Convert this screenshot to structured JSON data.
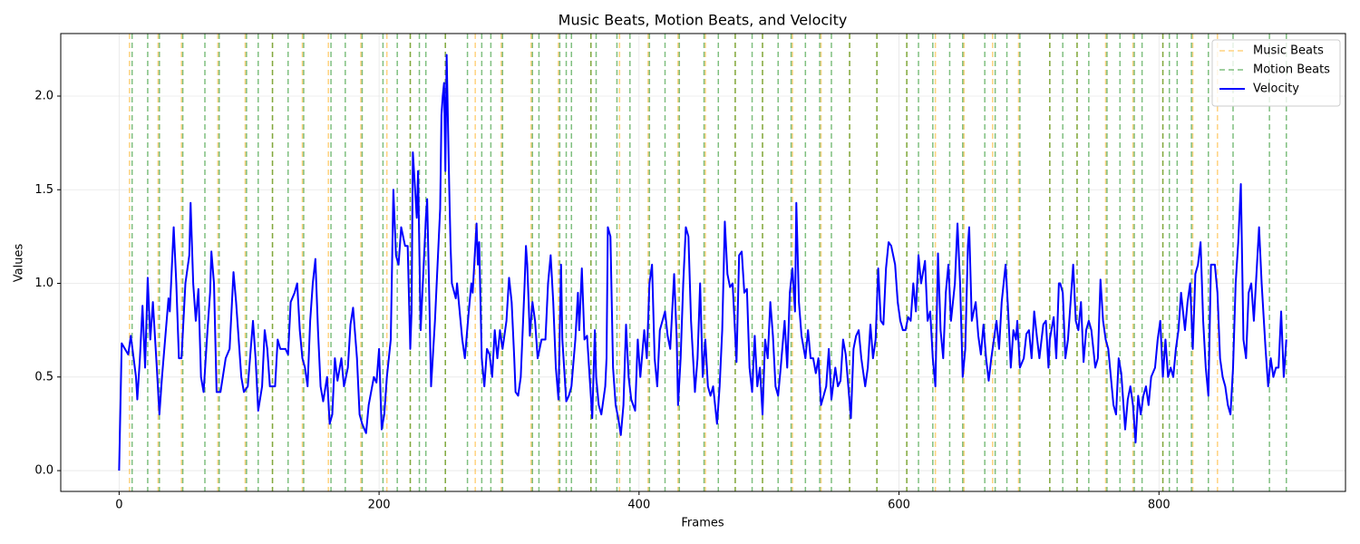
{
  "chart_data": {
    "type": "line",
    "title": "Music Beats, Motion Beats, and Velocity",
    "x_label": "Frames",
    "y_label": "Values",
    "xlim": [
      -44.9,
      943.5
    ],
    "ylim": [
      -0.111,
      2.334
    ],
    "xticks": [
      0,
      200,
      400,
      600,
      800
    ],
    "yticks": [
      {
        "value": 0,
        "label": "0.0"
      },
      0.5,
      {
        "value": 1,
        "label": "1.0"
      },
      1.5,
      {
        "value": 2,
        "label": "2.0"
      }
    ],
    "grid": true,
    "legend": "upper right",
    "series": [
      {
        "name": "Music Beats",
        "color": "orange",
        "style": "dashed",
        "x": [
          8,
          30,
          48,
          76,
          97,
          118,
          141,
          161,
          186,
          206,
          224,
          251,
          274,
          294,
          317,
          338,
          363,
          385,
          407,
          430,
          451,
          474,
          495,
          518,
          540,
          562,
          583,
          606,
          628,
          650,
          672,
          692,
          716,
          737,
          759,
          780,
          803,
          826,
          845
        ]
      },
      {
        "name": "Motion Beats",
        "color": "green",
        "style": "dashed",
        "x": [
          10,
          22,
          31,
          49,
          66,
          77,
          98,
          107,
          118,
          130,
          142,
          163,
          174,
          187,
          203,
          214,
          224,
          231,
          236,
          251,
          268,
          279,
          286,
          295,
          318,
          323,
          339,
          344,
          348,
          363,
          367,
          383,
          393,
          408,
          420,
          431,
          450,
          461,
          474,
          487,
          495,
          507,
          517,
          528,
          539,
          548,
          562,
          583,
          606,
          615,
          626,
          639,
          649,
          666,
          674,
          683,
          693,
          716,
          726,
          737,
          746,
          760,
          770,
          781,
          787,
          803,
          808,
          814,
          825,
          838,
          857,
          885,
          898
        ]
      },
      {
        "name": "Velocity",
        "color": "blue",
        "style": "solid",
        "x": [
          0,
          2,
          7,
          9,
          13,
          14,
          16,
          18,
          20,
          22,
          24,
          26,
          29,
          31,
          33,
          38,
          39,
          40,
          42,
          44,
          46,
          48,
          51,
          54,
          55,
          57,
          59,
          61,
          63,
          65,
          68,
          70,
          71,
          73,
          75,
          78,
          82,
          85,
          88,
          90,
          92,
          94,
          96,
          99,
          103,
          105,
          107,
          110,
          112,
          114,
          116,
          120,
          122,
          124,
          128,
          130,
          132,
          135,
          137,
          139,
          141,
          143,
          145,
          147,
          149,
          151,
          153,
          155,
          157,
          160,
          162,
          164,
          166,
          168,
          171,
          173,
          176,
          178,
          180,
          183,
          185,
          187,
          190,
          192,
          196,
          198,
          200,
          202,
          204,
          206,
          209,
          211,
          213,
          215,
          217,
          220,
          222,
          224,
          225,
          226,
          229,
          230,
          232,
          233,
          236,
          237,
          239,
          240,
          243,
          245,
          247,
          248,
          249,
          250,
          251,
          252,
          254,
          255,
          256,
          259,
          260,
          262,
          264,
          266,
          269,
          271,
          272,
          275,
          276,
          277,
          279,
          281,
          283,
          285,
          287,
          289,
          291,
          293,
          295,
          298,
          300,
          302,
          304,
          305,
          307,
          309,
          312,
          313,
          314,
          316,
          318,
          320,
          322,
          325,
          328,
          330,
          332,
          334,
          336,
          338,
          340,
          341,
          344,
          346,
          348,
          351,
          353,
          354,
          356,
          358,
          360,
          362,
          364,
          366,
          367,
          369,
          371,
          374,
          375,
          376,
          378,
          380,
          382,
          384,
          386,
          388,
          390,
          392,
          394,
          397,
          399,
          401,
          404,
          406,
          408,
          410,
          412,
          414,
          416,
          418,
          420,
          422,
          424,
          427,
          429,
          430,
          432,
          434,
          436,
          438,
          440,
          443,
          445,
          447,
          449,
          451,
          453,
          455,
          457,
          460,
          462,
          464,
          466,
          468,
          470,
          472,
          475,
          477,
          479,
          481,
          483,
          485,
          487,
          489,
          491,
          493,
          495,
          497,
          499,
          501,
          503,
          505,
          507,
          509,
          512,
          514,
          516,
          518,
          520,
          521,
          523,
          525,
          528,
          530,
          532,
          534,
          536,
          538,
          540,
          542,
          544,
          546,
          548,
          551,
          553,
          555,
          557,
          559,
          561,
          563,
          565,
          567,
          569,
          571,
          574,
          576,
          578,
          580,
          582,
          584,
          586,
          588,
          590,
          592,
          594,
          597,
          599,
          601,
          603,
          605,
          607,
          609,
          611,
          613,
          615,
          617,
          620,
          622,
          624,
          626,
          628,
          630,
          632,
          634,
          636,
          638,
          640,
          643,
          645,
          647,
          649,
          651,
          653,
          654,
          656,
          659,
          661,
          663,
          665,
          667,
          669,
          671,
          673,
          675,
          677,
          679,
          682,
          684,
          686,
          688,
          690,
          691,
          693,
          696,
          698,
          700,
          702,
          704,
          706,
          708,
          711,
          713,
          715,
          716,
          719,
          721,
          723,
          724,
          726,
          728,
          730,
          732,
          734,
          736,
          738,
          740,
          742,
          744,
          746,
          748,
          751,
          753,
          755,
          757,
          759,
          761,
          763,
          765,
          767,
          769,
          771,
          774,
          776,
          778,
          780,
          782,
          784,
          786,
          788,
          790,
          792,
          794,
          797,
          799,
          801,
          803,
          805,
          807,
          809,
          811,
          813,
          815,
          817,
          820,
          822,
          824,
          826,
          828,
          830,
          832,
          834,
          836,
          838,
          840,
          843,
          845,
          847,
          849,
          851,
          853,
          855,
          857,
          859,
          861,
          863,
          865,
          867,
          869,
          871,
          873,
          875,
          877,
          879,
          882,
          884,
          886,
          888,
          890,
          892,
          894,
          896,
          898
        ],
        "values": [
          0,
          0.68,
          0.62,
          0.72,
          0.5,
          0.38,
          0.6,
          0.88,
          0.55,
          1.03,
          0.7,
          0.9,
          0.55,
          0.3,
          0.5,
          0.92,
          0.85,
          1.0,
          1.3,
          1.0,
          0.6,
          0.6,
          1.0,
          1.15,
          1.43,
          1.0,
          0.8,
          0.97,
          0.5,
          0.42,
          0.75,
          0.95,
          1.17,
          1.0,
          0.42,
          0.42,
          0.6,
          0.65,
          1.06,
          0.9,
          0.7,
          0.5,
          0.42,
          0.45,
          0.8,
          0.6,
          0.32,
          0.45,
          0.75,
          0.65,
          0.45,
          0.45,
          0.7,
          0.65,
          0.65,
          0.62,
          0.9,
          0.95,
          1.0,
          0.75,
          0.6,
          0.55,
          0.45,
          0.8,
          1.0,
          1.13,
          0.75,
          0.45,
          0.37,
          0.5,
          0.25,
          0.3,
          0.6,
          0.48,
          0.6,
          0.45,
          0.55,
          0.78,
          0.87,
          0.6,
          0.3,
          0.25,
          0.2,
          0.35,
          0.5,
          0.47,
          0.65,
          0.22,
          0.3,
          0.5,
          0.7,
          1.5,
          1.15,
          1.1,
          1.3,
          1.2,
          1.2,
          0.65,
          0.85,
          1.7,
          1.35,
          1.6,
          0.75,
          0.9,
          1.35,
          1.45,
          0.8,
          0.45,
          0.8,
          1.1,
          1.4,
          1.9,
          2.0,
          2.07,
          1.6,
          2.22,
          1.5,
          1.2,
          1.0,
          0.92,
          1.0,
          0.85,
          0.7,
          0.6,
          0.85,
          1.0,
          0.95,
          1.32,
          1.1,
          1.22,
          0.6,
          0.45,
          0.65,
          0.62,
          0.5,
          0.75,
          0.6,
          0.75,
          0.65,
          0.8,
          1.03,
          0.9,
          0.6,
          0.42,
          0.4,
          0.5,
          1.0,
          1.2,
          1.1,
          0.72,
          0.9,
          0.8,
          0.6,
          0.7,
          0.7,
          1.0,
          1.15,
          0.9,
          0.55,
          0.38,
          1.1,
          0.7,
          0.37,
          0.4,
          0.45,
          0.7,
          0.95,
          0.75,
          1.08,
          0.7,
          0.72,
          0.5,
          0.28,
          0.75,
          0.5,
          0.35,
          0.3,
          0.45,
          0.6,
          1.3,
          1.25,
          0.55,
          0.35,
          0.28,
          0.19,
          0.35,
          0.78,
          0.5,
          0.38,
          0.32,
          0.7,
          0.5,
          0.75,
          0.6,
          1.0,
          1.1,
          0.6,
          0.45,
          0.75,
          0.8,
          0.85,
          0.72,
          0.65,
          1.05,
          0.7,
          0.35,
          0.6,
          1.0,
          1.3,
          1.25,
          0.8,
          0.42,
          0.6,
          1.0,
          0.5,
          0.7,
          0.45,
          0.4,
          0.45,
          0.25,
          0.45,
          0.75,
          1.33,
          1.05,
          0.98,
          1.0,
          0.58,
          1.15,
          1.17,
          0.95,
          0.97,
          0.55,
          0.42,
          0.72,
          0.45,
          0.55,
          0.3,
          0.7,
          0.6,
          0.9,
          0.72,
          0.45,
          0.4,
          0.55,
          0.8,
          0.55,
          0.95,
          1.08,
          0.85,
          1.43,
          0.9,
          0.72,
          0.6,
          0.75,
          0.6,
          0.6,
          0.52,
          0.6,
          0.35,
          0.4,
          0.45,
          0.65,
          0.38,
          0.55,
          0.45,
          0.48,
          0.7,
          0.62,
          0.45,
          0.28,
          0.65,
          0.72,
          0.75,
          0.6,
          0.45,
          0.55,
          0.78,
          0.6,
          0.7,
          1.08,
          0.8,
          0.78,
          1.08,
          1.22,
          1.2,
          1.1,
          0.9,
          0.8,
          0.75,
          0.75,
          0.82,
          0.8,
          1.0,
          0.85,
          1.15,
          1.0,
          1.12,
          0.8,
          0.85,
          0.6,
          0.45,
          1.16,
          0.75,
          0.6,
          0.95,
          1.1,
          0.8,
          1.0,
          1.32,
          1.0,
          0.5,
          0.65,
          1.2,
          1.3,
          0.8,
          0.9,
          0.72,
          0.62,
          0.78,
          0.6,
          0.48,
          0.6,
          0.7,
          0.8,
          0.65,
          0.9,
          1.1,
          0.85,
          0.55,
          0.75,
          0.7,
          0.8,
          0.55,
          0.6,
          0.73,
          0.75,
          0.6,
          0.85,
          0.72,
          0.6,
          0.78,
          0.8,
          0.55,
          0.7,
          0.82,
          0.6,
          1.0,
          1.0,
          0.95,
          0.6,
          0.7,
          0.9,
          1.1,
          0.8,
          0.75,
          0.9,
          0.58,
          0.75,
          0.8,
          0.75,
          0.55,
          0.6,
          1.02,
          0.8,
          0.7,
          0.65,
          0.5,
          0.35,
          0.3,
          0.6,
          0.52,
          0.22,
          0.38,
          0.45,
          0.35,
          0.15,
          0.4,
          0.3,
          0.4,
          0.45,
          0.35,
          0.5,
          0.55,
          0.7,
          0.8,
          0.5,
          0.7,
          0.5,
          0.55,
          0.5,
          0.65,
          0.75,
          0.95,
          0.75,
          0.9,
          1.0,
          0.65,
          1.05,
          1.1,
          1.22,
          0.8,
          0.55,
          0.4,
          1.1,
          1.1,
          0.95,
          0.6,
          0.5,
          0.45,
          0.35,
          0.3,
          0.55,
          1.0,
          1.22,
          1.53,
          0.7,
          0.6,
          0.95,
          1.0,
          0.8,
          1.05,
          1.3,
          1.0,
          0.65,
          0.45,
          0.6,
          0.5,
          0.55,
          0.55,
          0.85,
          0.5,
          0.7
        ]
      }
    ]
  }
}
